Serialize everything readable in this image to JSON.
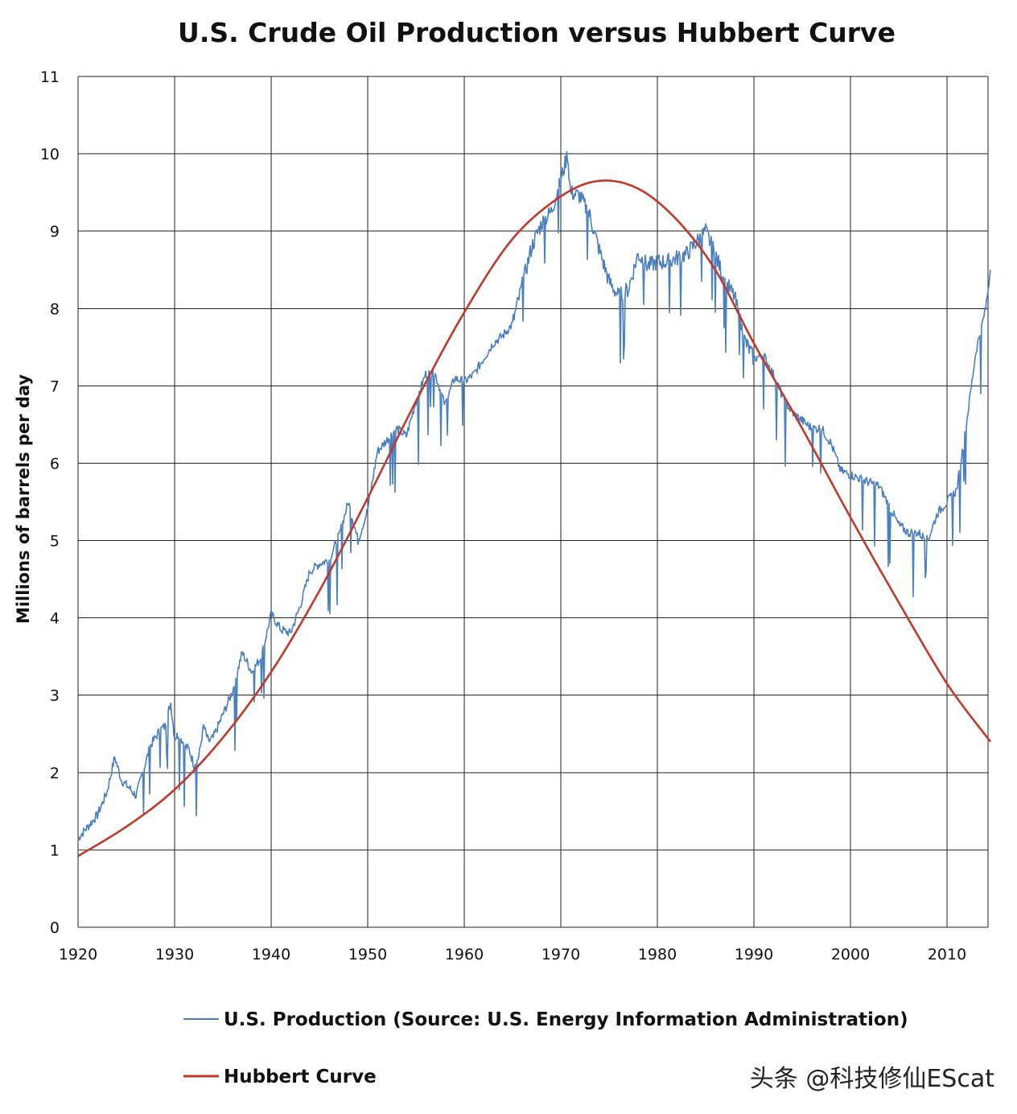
{
  "chart_data": {
    "type": "line",
    "title": "U.S. Crude Oil Production versus Hubbert Curve",
    "xlabel": "",
    "ylabel": "Millions of barrels per day",
    "xlim": [
      1920,
      2015
    ],
    "ylim": [
      0,
      11
    ],
    "xticks": [
      "1920",
      "1930",
      "1940",
      "1950",
      "1960",
      "1970",
      "1980",
      "1990",
      "2000",
      "2010"
    ],
    "yticks": [
      "0",
      "1",
      "2",
      "3",
      "4",
      "5",
      "6",
      "7",
      "8",
      "9",
      "10",
      "11"
    ],
    "grid": true,
    "legend_position": "bottom",
    "series": [
      {
        "name": "U.S. Production (Source: U.S. Energy Information Administration)",
        "color": "#4a7fc0",
        "x": [
          1920,
          1921,
          1922,
          1923,
          1923.8,
          1924.5,
          1925.3,
          1926,
          1926.7,
          1927.5,
          1928.5,
          1929,
          1929.6,
          1930,
          1930.5,
          1931,
          1931.5,
          1932,
          1932.5,
          1933,
          1933.5,
          1934,
          1935,
          1936,
          1937,
          1938,
          1939,
          1940,
          1941,
          1942,
          1943,
          1944,
          1945,
          1946,
          1947,
          1948,
          1949,
          1950,
          1951,
          1952,
          1953,
          1954,
          1955,
          1956,
          1957,
          1958,
          1959,
          1960,
          1961,
          1962,
          1963,
          1964,
          1965,
          1966,
          1967,
          1968,
          1969,
          1970,
          1970.7,
          1971,
          1972,
          1973,
          1974,
          1975,
          1976,
          1977,
          1978,
          1979,
          1980,
          1981,
          1982,
          1983,
          1984,
          1985,
          1986,
          1987,
          1988,
          1989,
          1990,
          1991,
          1992,
          1993,
          1994,
          1995,
          1996,
          1997,
          1998,
          1999,
          2000,
          2001,
          2002,
          2003,
          2004,
          2005,
          2006,
          2007,
          2008,
          2009,
          2010,
          2011,
          2012,
          2013,
          2014,
          2014.5
        ],
        "y": [
          1.15,
          1.3,
          1.45,
          1.75,
          2.2,
          1.9,
          1.8,
          1.7,
          2.0,
          2.35,
          2.55,
          2.6,
          2.9,
          2.45,
          2.5,
          2.35,
          2.3,
          2.1,
          2.2,
          2.6,
          2.4,
          2.45,
          2.75,
          3.05,
          3.55,
          3.3,
          3.5,
          4.05,
          3.85,
          3.8,
          4.15,
          4.6,
          4.7,
          4.75,
          5.05,
          5.5,
          5.0,
          5.4,
          6.15,
          6.3,
          6.45,
          6.35,
          6.8,
          7.15,
          7.15,
          6.75,
          7.1,
          7.05,
          7.15,
          7.35,
          7.55,
          7.65,
          7.8,
          8.3,
          8.8,
          9.1,
          9.25,
          9.65,
          10.0,
          9.5,
          9.45,
          9.2,
          8.75,
          8.35,
          8.15,
          8.25,
          8.7,
          8.55,
          8.6,
          8.6,
          8.65,
          8.7,
          8.85,
          9.0,
          8.7,
          8.35,
          8.15,
          7.6,
          7.35,
          7.4,
          7.15,
          6.85,
          6.65,
          6.55,
          6.45,
          6.45,
          6.25,
          5.9,
          5.85,
          5.8,
          5.75,
          5.7,
          5.45,
          5.2,
          5.1,
          5.1,
          5.0,
          5.35,
          5.5,
          5.65,
          6.5,
          7.45,
          8.0,
          8.5
        ]
      },
      {
        "name": "Hubbert Curve",
        "color": "#c0392b",
        "peak_year": 1974,
        "peak_value": 9.65,
        "x": [
          1920,
          1925,
          1930,
          1935,
          1940,
          1945,
          1950,
          1955,
          1960,
          1965,
          1970,
          1974,
          1978,
          1982,
          1986,
          1990,
          1995,
          2000,
          2005,
          2010,
          2014.5
        ],
        "y": [
          0.92,
          1.3,
          1.78,
          2.45,
          3.3,
          4.35,
          5.55,
          6.8,
          7.95,
          8.9,
          9.45,
          9.65,
          9.55,
          9.15,
          8.5,
          7.55,
          6.45,
          5.3,
          4.2,
          3.15,
          2.4
        ]
      }
    ]
  },
  "watermark": "头条 @科技修仙EScat"
}
